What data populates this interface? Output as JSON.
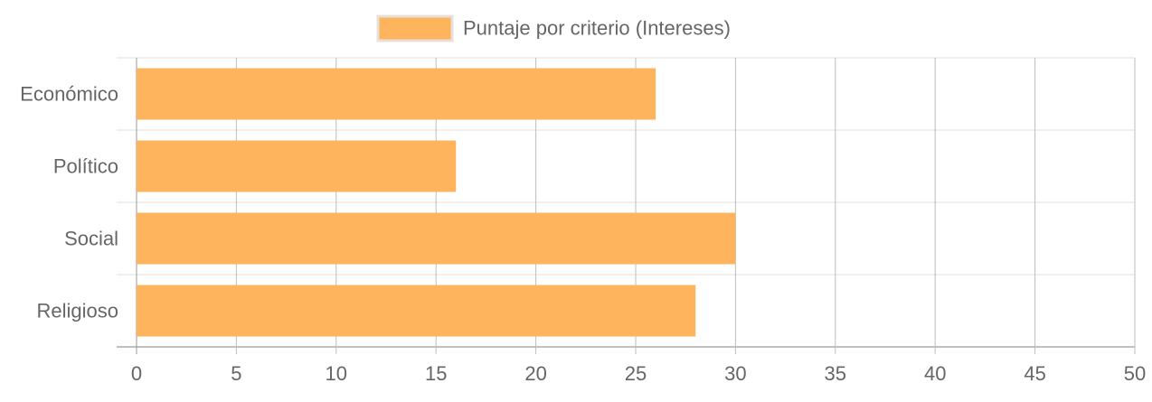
{
  "chart_data": {
    "type": "bar",
    "orientation": "horizontal",
    "categories": [
      "Económico",
      "Político",
      "Social",
      "Religioso"
    ],
    "series": [
      {
        "name": "Puntaje por criterio (Intereses)",
        "values": [
          26,
          16,
          30,
          28
        ],
        "color": "#FDB45C",
        "border_color": "#E8E0D8"
      }
    ],
    "x_ticks": [
      "0",
      "5",
      "10",
      "15",
      "20",
      "25",
      "30",
      "35",
      "40",
      "45",
      "50"
    ],
    "xlim": [
      0,
      50
    ],
    "grid": true,
    "legend_position": "top"
  }
}
